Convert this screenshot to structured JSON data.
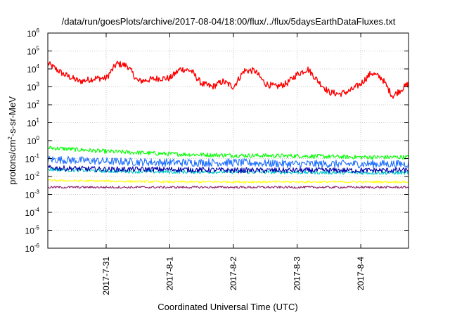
{
  "chart_data": {
    "type": "line",
    "title": "/data/run/goesPlots/archive/2017-08-04/18:00/flux/../flux/5daysEarthDataFluxes.txt",
    "xlabel": "Coordinated Universal Time (UTC)",
    "ylabel": "protons/cm²-s-sr-MeV",
    "ylabel_parts": {
      "a": "protons/cm",
      "sup": "2",
      "b": "-s-sr-MeV"
    },
    "yscale": "log",
    "ylim": [
      1e-06,
      1000000.0
    ],
    "y_ticks": [
      {
        "base": "10",
        "exp": "-6",
        "value": 1e-06
      },
      {
        "base": "10",
        "exp": "-5",
        "value": 1e-05
      },
      {
        "base": "10",
        "exp": "-4",
        "value": 0.0001
      },
      {
        "base": "10",
        "exp": "-3",
        "value": 0.001
      },
      {
        "base": "10",
        "exp": "-2",
        "value": 0.01
      },
      {
        "base": "10",
        "exp": "-1",
        "value": 0.1
      },
      {
        "base": "10",
        "exp": "0",
        "value": 1
      },
      {
        "base": "10",
        "exp": "1",
        "value": 10
      },
      {
        "base": "10",
        "exp": "2",
        "value": 100
      },
      {
        "base": "10",
        "exp": "3",
        "value": 1000
      },
      {
        "base": "10",
        "exp": "4",
        "value": 10000
      },
      {
        "base": "10",
        "exp": "5",
        "value": 100000
      },
      {
        "base": "10",
        "exp": "6",
        "value": 1000000
      }
    ],
    "x_range_days": [
      "2017-07-30T02:00",
      "2017-08-04T18:00"
    ],
    "x_ticks": [
      "2017-7-31",
      "2017-8-1",
      "2017-8-2",
      "2017-8-3",
      "2017-8-4"
    ],
    "grid": true,
    "series": [
      {
        "color": "#ff0000",
        "noise": 0.18,
        "x": [
          "2017-07-30T02:00",
          "2017-07-30T08:00",
          "2017-07-30T14:00",
          "2017-07-30T20:00",
          "2017-07-31T00:00",
          "2017-07-31T04:00",
          "2017-07-31T08:00",
          "2017-07-31T12:00",
          "2017-07-31T16:00",
          "2017-07-31T20:00",
          "2017-08-01T00:00",
          "2017-08-01T04:00",
          "2017-08-01T08:00",
          "2017-08-01T12:00",
          "2017-08-01T16:00",
          "2017-08-01T20:00",
          "2017-08-02T00:00",
          "2017-08-02T04:00",
          "2017-08-02T08:00",
          "2017-08-02T12:00",
          "2017-08-02T16:00",
          "2017-08-02T20:00",
          "2017-08-03T00:00",
          "2017-08-03T04:00",
          "2017-08-03T08:00",
          "2017-08-03T12:00",
          "2017-08-03T16:00",
          "2017-08-03T20:00",
          "2017-08-04T00:00",
          "2017-08-04T04:00",
          "2017-08-04T08:00",
          "2017-08-04T12:00",
          "2017-08-04T18:00"
        ],
        "y": [
          20000,
          5000,
          2000,
          3000,
          3000,
          20000,
          15000,
          2000,
          2500,
          3000,
          3000,
          10000,
          8000,
          1500,
          1000,
          2000,
          1000,
          8000,
          8000,
          1500,
          1000,
          1500,
          5000,
          10000,
          2000,
          500,
          400,
          600,
          1500,
          6000,
          3000,
          300,
          1500
        ]
      },
      {
        "color": "#00ff00",
        "noise": 0.12,
        "x": [
          "2017-07-30T02:00",
          "2017-07-31T00:00",
          "2017-08-01T00:00",
          "2017-08-02T00:00",
          "2017-08-03T00:00",
          "2017-08-04T00:00",
          "2017-08-04T18:00"
        ],
        "y": [
          0.4,
          0.25,
          0.18,
          0.15,
          0.14,
          0.12,
          0.12
        ]
      },
      {
        "color": "#1e6fff",
        "noise": 0.22,
        "x": [
          "2017-07-30T02:00",
          "2017-07-31T00:00",
          "2017-08-01T00:00",
          "2017-08-02T00:00",
          "2017-08-03T00:00",
          "2017-08-04T00:00",
          "2017-08-04T18:00"
        ],
        "y": [
          0.09,
          0.07,
          0.06,
          0.06,
          0.05,
          0.05,
          0.05
        ]
      },
      {
        "color": "#00c8c8",
        "noise": 0.1,
        "x": [
          "2017-07-30T02:00",
          "2017-07-31T00:00",
          "2017-08-01T00:00",
          "2017-08-02T00:00",
          "2017-08-03T00:00",
          "2017-08-04T00:00",
          "2017-08-04T18:00"
        ],
        "y": [
          0.025,
          0.02,
          0.018,
          0.018,
          0.017,
          0.016,
          0.016
        ]
      },
      {
        "color": "#0000aa",
        "noise": 0.15,
        "x": [
          "2017-07-30T02:00",
          "2017-07-31T00:00",
          "2017-08-01T00:00",
          "2017-08-02T00:00",
          "2017-08-03T00:00",
          "2017-08-04T00:00",
          "2017-08-04T18:00"
        ],
        "y": [
          0.03,
          0.025,
          0.025,
          0.022,
          0.022,
          0.022,
          0.022
        ]
      },
      {
        "color": "#ffff00",
        "noise": 0.06,
        "x": [
          "2017-07-30T02:00",
          "2017-07-31T00:00",
          "2017-08-01T00:00",
          "2017-08-02T00:00",
          "2017-08-03T00:00",
          "2017-08-04T00:00",
          "2017-08-04T18:00"
        ],
        "y": [
          0.006,
          0.0055,
          0.005,
          0.005,
          0.005,
          0.005,
          0.005
        ]
      },
      {
        "color": "#8b1a6b",
        "noise": 0.06,
        "x": [
          "2017-07-30T02:00",
          "2017-07-31T00:00",
          "2017-08-01T00:00",
          "2017-08-02T00:00",
          "2017-08-03T00:00",
          "2017-08-04T00:00",
          "2017-08-04T18:00"
        ],
        "y": [
          0.0025,
          0.0025,
          0.0025,
          0.0025,
          0.0025,
          0.0025,
          0.0025
        ]
      }
    ]
  }
}
